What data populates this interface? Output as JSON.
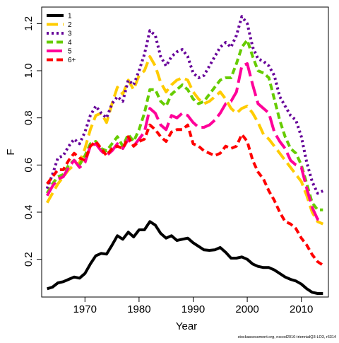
{
  "chart_data": {
    "type": "line",
    "xlabel": "Year",
    "ylabel": "F",
    "xlim": [
      1962,
      2015
    ],
    "ylim": [
      0.04,
      1.27
    ],
    "xticks": [
      1970,
      1980,
      1990,
      2000,
      2010
    ],
    "yticks": [
      0.2,
      0.4,
      0.6,
      0.8,
      1.0,
      1.2
    ],
    "legend_position": "top-left",
    "caption": "stockassessment.org, nscod2016-triennialQ3-LO3, r6314",
    "series": [
      {
        "name": "1",
        "color": "#000000",
        "dash": "solid",
        "x": [
          1963,
          1964,
          1965,
          1966,
          1967,
          1968,
          1969,
          1970,
          1971,
          1972,
          1973,
          1974,
          1975,
          1976,
          1977,
          1978,
          1979,
          1980,
          1981,
          1982,
          1983,
          1984,
          1985,
          1986,
          1987,
          1988,
          1989,
          1990,
          1991,
          1992,
          1993,
          1994,
          1995,
          1996,
          1997,
          1998,
          1999,
          2000,
          2001,
          2002,
          2003,
          2004,
          2005,
          2006,
          2007,
          2008,
          2009,
          2010,
          2011,
          2012,
          2013,
          2014
        ],
        "values": [
          0.075,
          0.082,
          0.1,
          0.105,
          0.115,
          0.125,
          0.12,
          0.14,
          0.18,
          0.215,
          0.225,
          0.222,
          0.26,
          0.3,
          0.285,
          0.315,
          0.295,
          0.325,
          0.325,
          0.36,
          0.345,
          0.31,
          0.29,
          0.3,
          0.28,
          0.285,
          0.29,
          0.27,
          0.255,
          0.24,
          0.238,
          0.24,
          0.25,
          0.23,
          0.205,
          0.205,
          0.21,
          0.2,
          0.18,
          0.17,
          0.165,
          0.165,
          0.155,
          0.14,
          0.125,
          0.115,
          0.108,
          0.095,
          0.075,
          0.06,
          0.055,
          0.055
        ]
      },
      {
        "name": "2",
        "color": "#FFCC00",
        "dash": "long",
        "x": [
          1963,
          1964,
          1965,
          1966,
          1967,
          1968,
          1969,
          1970,
          1971,
          1972,
          1973,
          1974,
          1975,
          1976,
          1977,
          1978,
          1979,
          1980,
          1981,
          1982,
          1983,
          1984,
          1985,
          1986,
          1987,
          1988,
          1989,
          1990,
          1991,
          1992,
          1993,
          1994,
          1995,
          1996,
          1997,
          1998,
          1999,
          2000,
          2001,
          2002,
          2003,
          2004,
          2005,
          2006,
          2007,
          2008,
          2009,
          2010,
          2011,
          2012,
          2013,
          2014
        ],
        "values": [
          0.44,
          0.48,
          0.52,
          0.55,
          0.58,
          0.6,
          0.61,
          0.67,
          0.75,
          0.81,
          0.82,
          0.78,
          0.86,
          0.93,
          0.9,
          0.96,
          0.92,
          0.98,
          1.0,
          1.06,
          1.02,
          0.95,
          0.91,
          0.94,
          0.96,
          0.97,
          0.96,
          0.91,
          0.88,
          0.86,
          0.87,
          0.89,
          0.91,
          0.88,
          0.84,
          0.82,
          0.84,
          0.85,
          0.82,
          0.78,
          0.73,
          0.71,
          0.68,
          0.65,
          0.62,
          0.59,
          0.56,
          0.53,
          0.47,
          0.4,
          0.36,
          0.35
        ]
      },
      {
        "name": "3",
        "color": "#660099",
        "dash": "dotted",
        "x": [
          1963,
          1964,
          1965,
          1966,
          1967,
          1968,
          1969,
          1970,
          1971,
          1972,
          1973,
          1974,
          1975,
          1976,
          1977,
          1978,
          1979,
          1980,
          1981,
          1982,
          1983,
          1984,
          1985,
          1986,
          1987,
          1988,
          1989,
          1990,
          1991,
          1992,
          1993,
          1994,
          1995,
          1996,
          1997,
          1998,
          1999,
          2000,
          2001,
          2002,
          2003,
          2004,
          2005,
          2006,
          2007,
          2008,
          2009,
          2010,
          2011,
          2012,
          2013,
          2014
        ],
        "values": [
          0.5,
          0.56,
          0.63,
          0.64,
          0.68,
          0.71,
          0.69,
          0.74,
          0.81,
          0.85,
          0.82,
          0.8,
          0.86,
          0.89,
          0.87,
          0.96,
          0.94,
          1.0,
          1.07,
          1.17,
          1.15,
          1.06,
          1.02,
          1.06,
          1.08,
          1.09,
          1.06,
          0.99,
          0.97,
          0.98,
          1.02,
          1.06,
          1.1,
          1.12,
          1.1,
          1.15,
          1.23,
          1.2,
          1.1,
          1.05,
          1.04,
          1.02,
          0.98,
          0.89,
          0.85,
          0.81,
          0.79,
          0.72,
          0.61,
          0.53,
          0.48,
          0.49
        ]
      },
      {
        "name": "4",
        "color": "#66CC00",
        "dash": "dashed",
        "x": [
          1963,
          1964,
          1965,
          1966,
          1967,
          1968,
          1969,
          1970,
          1971,
          1972,
          1973,
          1974,
          1975,
          1976,
          1977,
          1978,
          1979,
          1980,
          1981,
          1982,
          1983,
          1984,
          1985,
          1986,
          1987,
          1988,
          1989,
          1990,
          1991,
          1992,
          1993,
          1994,
          1995,
          1996,
          1997,
          1998,
          1999,
          2000,
          2001,
          2002,
          2003,
          2004,
          2005,
          2006,
          2007,
          2008,
          2009,
          2010,
          2011,
          2012,
          2013,
          2014
        ],
        "values": [
          0.48,
          0.52,
          0.55,
          0.56,
          0.6,
          0.62,
          0.6,
          0.64,
          0.69,
          0.7,
          0.67,
          0.66,
          0.69,
          0.72,
          0.68,
          0.73,
          0.7,
          0.75,
          0.82,
          0.92,
          0.92,
          0.87,
          0.85,
          0.9,
          0.92,
          0.94,
          0.92,
          0.88,
          0.86,
          0.87,
          0.9,
          0.93,
          0.96,
          0.97,
          0.97,
          1.03,
          1.1,
          1.13,
          1.06,
          1.0,
          0.99,
          0.97,
          0.88,
          0.79,
          0.72,
          0.67,
          0.65,
          0.6,
          0.52,
          0.44,
          0.41,
          0.41
        ]
      },
      {
        "name": "5",
        "color": "#FF0099",
        "dash": "longlong",
        "x": [
          1963,
          1964,
          1965,
          1966,
          1967,
          1968,
          1969,
          1970,
          1971,
          1972,
          1973,
          1974,
          1975,
          1976,
          1977,
          1978,
          1979,
          1980,
          1981,
          1982,
          1983,
          1984,
          1985,
          1986,
          1987,
          1988,
          1989,
          1990,
          1991,
          1992,
          1993,
          1994,
          1995,
          1996,
          1997,
          1998,
          1999,
          2000,
          2001,
          2002,
          2003,
          2004,
          2005,
          2006,
          2007,
          2008,
          2009,
          2010,
          2011,
          2012,
          2013,
          2014
        ],
        "values": [
          0.47,
          0.51,
          0.54,
          0.55,
          0.59,
          0.62,
          0.59,
          0.61,
          0.68,
          0.69,
          0.66,
          0.64,
          0.66,
          0.69,
          0.67,
          0.71,
          0.68,
          0.71,
          0.74,
          0.84,
          0.82,
          0.77,
          0.75,
          0.81,
          0.8,
          0.82,
          0.81,
          0.78,
          0.76,
          0.76,
          0.77,
          0.79,
          0.82,
          0.86,
          0.87,
          0.91,
          1.02,
          1.03,
          0.94,
          0.86,
          0.84,
          0.82,
          0.74,
          0.7,
          0.67,
          0.62,
          0.6,
          0.59,
          0.5,
          0.42,
          0.37,
          0.36
        ]
      },
      {
        "name": "6+",
        "color": "#FF0000",
        "dash": "dashed",
        "x": [
          1963,
          1964,
          1965,
          1966,
          1967,
          1968,
          1969,
          1970,
          1971,
          1972,
          1973,
          1974,
          1975,
          1976,
          1977,
          1978,
          1979,
          1980,
          1981,
          1982,
          1983,
          1984,
          1985,
          1986,
          1987,
          1988,
          1989,
          1990,
          1991,
          1992,
          1993,
          1994,
          1995,
          1996,
          1997,
          1998,
          1999,
          2000,
          2001,
          2002,
          2003,
          2004,
          2005,
          2006,
          2007,
          2008,
          2009,
          2010,
          2011,
          2012,
          2013,
          2014
        ],
        "values": [
          0.52,
          0.55,
          0.58,
          0.58,
          0.62,
          0.65,
          0.63,
          0.62,
          0.68,
          0.7,
          0.67,
          0.64,
          0.67,
          0.68,
          0.67,
          0.72,
          0.68,
          0.7,
          0.71,
          0.77,
          0.75,
          0.72,
          0.7,
          0.74,
          0.75,
          0.75,
          0.77,
          0.69,
          0.68,
          0.66,
          0.65,
          0.64,
          0.65,
          0.68,
          0.67,
          0.68,
          0.73,
          0.7,
          0.62,
          0.57,
          0.54,
          0.49,
          0.45,
          0.4,
          0.36,
          0.35,
          0.33,
          0.29,
          0.26,
          0.22,
          0.19,
          0.175
        ]
      }
    ]
  }
}
